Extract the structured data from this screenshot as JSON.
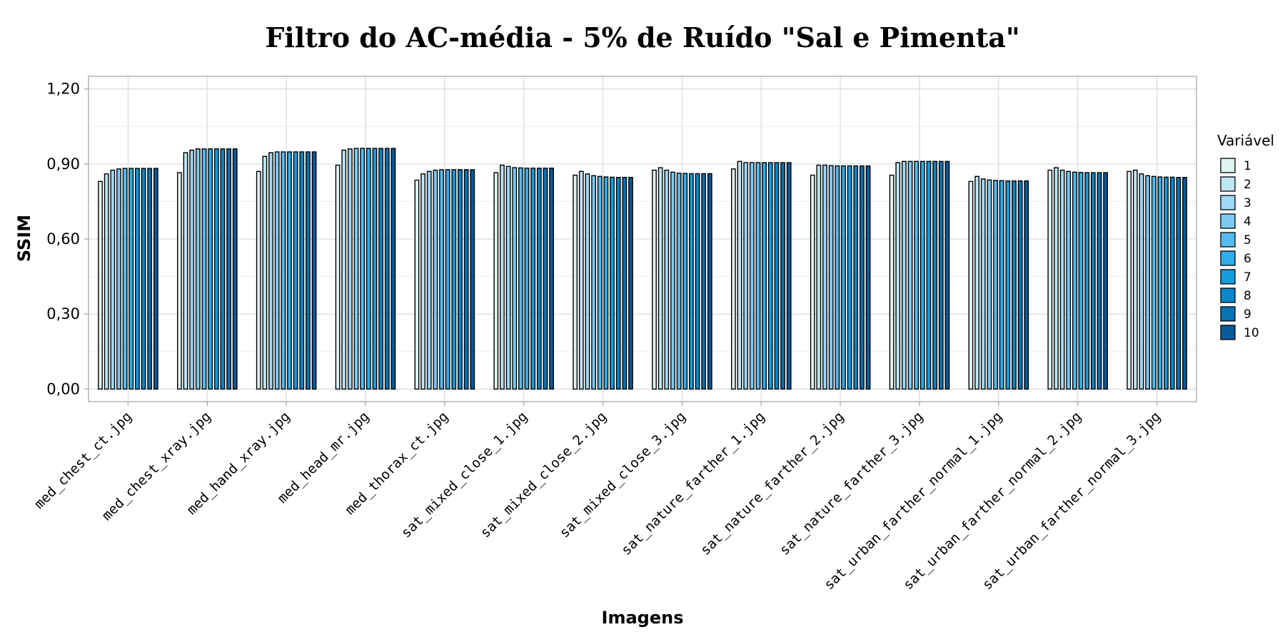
{
  "chart_data": {
    "type": "bar",
    "title": "Filtro do AC-média - 5% de Ruído \"Sal e Pimenta\"",
    "xlabel": "Imagens",
    "ylabel": "SSIM",
    "ylim": [
      -0.05,
      1.25
    ],
    "yticks": [
      0,
      0.3,
      0.6,
      0.9,
      1.2
    ],
    "ytick_labels": [
      "0,00",
      "0,30",
      "0,60",
      "0,90",
      "1,20"
    ],
    "grid": true,
    "legend_title": "Variável",
    "legend_position": "right",
    "categories": [
      "med_chest_ct.jpg",
      "med_chest_xray.jpg",
      "med_hand_xray.jpg",
      "med_head_mr.jpg",
      "med_thorax_ct.jpg",
      "sat_mixed_close_1.jpg",
      "sat_mixed_close_2.jpg",
      "sat_mixed_close_3.jpg",
      "sat_nature_farther_1.jpg",
      "sat_nature_farther_2.jpg",
      "sat_nature_farther_3.jpg",
      "sat_urban_farther_normal_1.jpg",
      "sat_urban_farther_normal_2.jpg",
      "sat_urban_farther_normal_3.jpg"
    ],
    "series": [
      {
        "name": "1",
        "color": "#e0f3f3",
        "values": [
          0.83,
          0.865,
          0.87,
          0.895,
          0.835,
          0.865,
          0.855,
          0.875,
          0.88,
          0.855,
          0.855,
          0.83,
          0.875,
          0.87
        ]
      },
      {
        "name": "2",
        "color": "#bfe6f5",
        "values": [
          0.86,
          0.945,
          0.93,
          0.955,
          0.86,
          0.895,
          0.87,
          0.885,
          0.91,
          0.895,
          0.905,
          0.85,
          0.885,
          0.875
        ]
      },
      {
        "name": "3",
        "color": "#9fd8f6",
        "values": [
          0.875,
          0.955,
          0.945,
          0.96,
          0.87,
          0.89,
          0.86,
          0.875,
          0.905,
          0.895,
          0.91,
          0.84,
          0.875,
          0.86
        ]
      },
      {
        "name": "4",
        "color": "#7dcbf5",
        "values": [
          0.88,
          0.96,
          0.948,
          0.962,
          0.875,
          0.885,
          0.853,
          0.867,
          0.905,
          0.893,
          0.91,
          0.836,
          0.87,
          0.853
        ]
      },
      {
        "name": "5",
        "color": "#57bdf0",
        "values": [
          0.882,
          0.96,
          0.948,
          0.962,
          0.877,
          0.884,
          0.85,
          0.863,
          0.905,
          0.892,
          0.91,
          0.834,
          0.867,
          0.85
        ]
      },
      {
        "name": "6",
        "color": "#30aeea",
        "values": [
          0.882,
          0.96,
          0.948,
          0.962,
          0.877,
          0.883,
          0.848,
          0.862,
          0.905,
          0.892,
          0.91,
          0.833,
          0.866,
          0.848
        ]
      },
      {
        "name": "7",
        "color": "#159cdc",
        "values": [
          0.882,
          0.96,
          0.948,
          0.962,
          0.877,
          0.883,
          0.847,
          0.861,
          0.905,
          0.892,
          0.91,
          0.832,
          0.865,
          0.847
        ]
      },
      {
        "name": "8",
        "color": "#0b86c8",
        "values": [
          0.882,
          0.96,
          0.948,
          0.962,
          0.877,
          0.883,
          0.846,
          0.861,
          0.905,
          0.892,
          0.91,
          0.832,
          0.865,
          0.847
        ]
      },
      {
        "name": "9",
        "color": "#0772b2",
        "values": [
          0.882,
          0.96,
          0.948,
          0.962,
          0.877,
          0.883,
          0.846,
          0.861,
          0.905,
          0.892,
          0.91,
          0.832,
          0.865,
          0.846
        ]
      },
      {
        "name": "10",
        "color": "#075b98",
        "values": [
          0.882,
          0.96,
          0.948,
          0.962,
          0.877,
          0.883,
          0.846,
          0.861,
          0.905,
          0.892,
          0.91,
          0.832,
          0.865,
          0.846
        ]
      }
    ]
  }
}
